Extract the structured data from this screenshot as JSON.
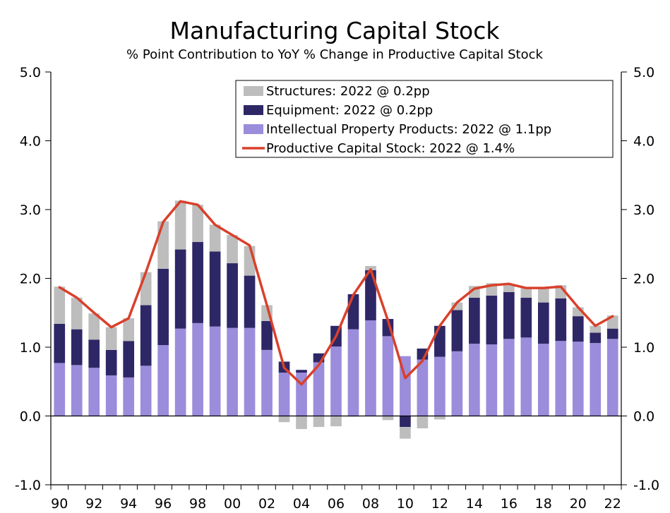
{
  "chart_data": {
    "type": "bar",
    "stacked": true,
    "title": "Manufacturing Capital Stock",
    "subtitle": "% Point Contribution to YoY % Change in Productive Capital Stock",
    "categories": [
      "1990",
      "1991",
      "1992",
      "1993",
      "1994",
      "1995",
      "1996",
      "1997",
      "1998",
      "1999",
      "2000",
      "2001",
      "2002",
      "2003",
      "2004",
      "2005",
      "2006",
      "2007",
      "2008",
      "2009",
      "2010",
      "2011",
      "2012",
      "2013",
      "2014",
      "2015",
      "2016",
      "2017",
      "2018",
      "2019",
      "2020",
      "2021",
      "2022"
    ],
    "x_tick_labels": [
      "90",
      "92",
      "94",
      "96",
      "98",
      "00",
      "02",
      "04",
      "06",
      "08",
      "10",
      "12",
      "14",
      "16",
      "18",
      "20",
      "22"
    ],
    "y_tick_labels": [
      "5.0",
      "4.0",
      "3.0",
      "2.0",
      "1.0",
      "0.0",
      "-1.0"
    ],
    "ylim": [
      -1.0,
      5.0
    ],
    "series": [
      {
        "name": "Intellectual Property Products: 2022 @ 1.1pp",
        "kind": "bar",
        "color": "#9b8ddb",
        "values": [
          0.77,
          0.74,
          0.7,
          0.59,
          0.56,
          0.73,
          1.03,
          1.27,
          1.35,
          1.3,
          1.28,
          1.28,
          0.96,
          0.63,
          0.63,
          0.78,
          1.01,
          1.26,
          1.39,
          1.16,
          0.87,
          0.82,
          0.86,
          0.94,
          1.05,
          1.04,
          1.12,
          1.14,
          1.05,
          1.09,
          1.08,
          1.06,
          1.12
        ]
      },
      {
        "name": "Equipment: 2022 @ 0.2pp",
        "kind": "bar",
        "color": "#2e2766",
        "values": [
          0.57,
          0.52,
          0.41,
          0.37,
          0.53,
          0.88,
          1.11,
          1.15,
          1.18,
          1.09,
          0.94,
          0.76,
          0.42,
          0.16,
          0.04,
          0.13,
          0.3,
          0.51,
          0.73,
          0.25,
          -0.16,
          0.16,
          0.45,
          0.6,
          0.67,
          0.71,
          0.68,
          0.58,
          0.6,
          0.62,
          0.37,
          0.15,
          0.15
        ]
      },
      {
        "name": "Structures: 2022 @ 0.2pp",
        "kind": "bar",
        "color": "#bdbdbd",
        "values": [
          0.54,
          0.46,
          0.38,
          0.33,
          0.33,
          0.48,
          0.69,
          0.71,
          0.54,
          0.39,
          0.41,
          0.43,
          0.23,
          -0.09,
          -0.19,
          -0.16,
          -0.15,
          -0.01,
          0.06,
          -0.06,
          -0.17,
          -0.18,
          -0.05,
          0.11,
          0.17,
          0.18,
          0.11,
          0.14,
          0.2,
          0.19,
          0.13,
          0.1,
          0.19
        ]
      },
      {
        "name": "Productive Capital Stock: 2022 @ 1.4%",
        "kind": "line",
        "color": "#d9402b",
        "values": [
          1.87,
          1.72,
          1.5,
          1.29,
          1.42,
          2.09,
          2.82,
          3.12,
          3.07,
          2.78,
          2.63,
          2.48,
          1.61,
          0.7,
          0.46,
          0.74,
          1.16,
          1.76,
          2.13,
          1.39,
          0.55,
          0.8,
          1.31,
          1.65,
          1.85,
          1.9,
          1.92,
          1.86,
          1.86,
          1.88,
          1.58,
          1.31,
          1.45
        ]
      }
    ]
  }
}
